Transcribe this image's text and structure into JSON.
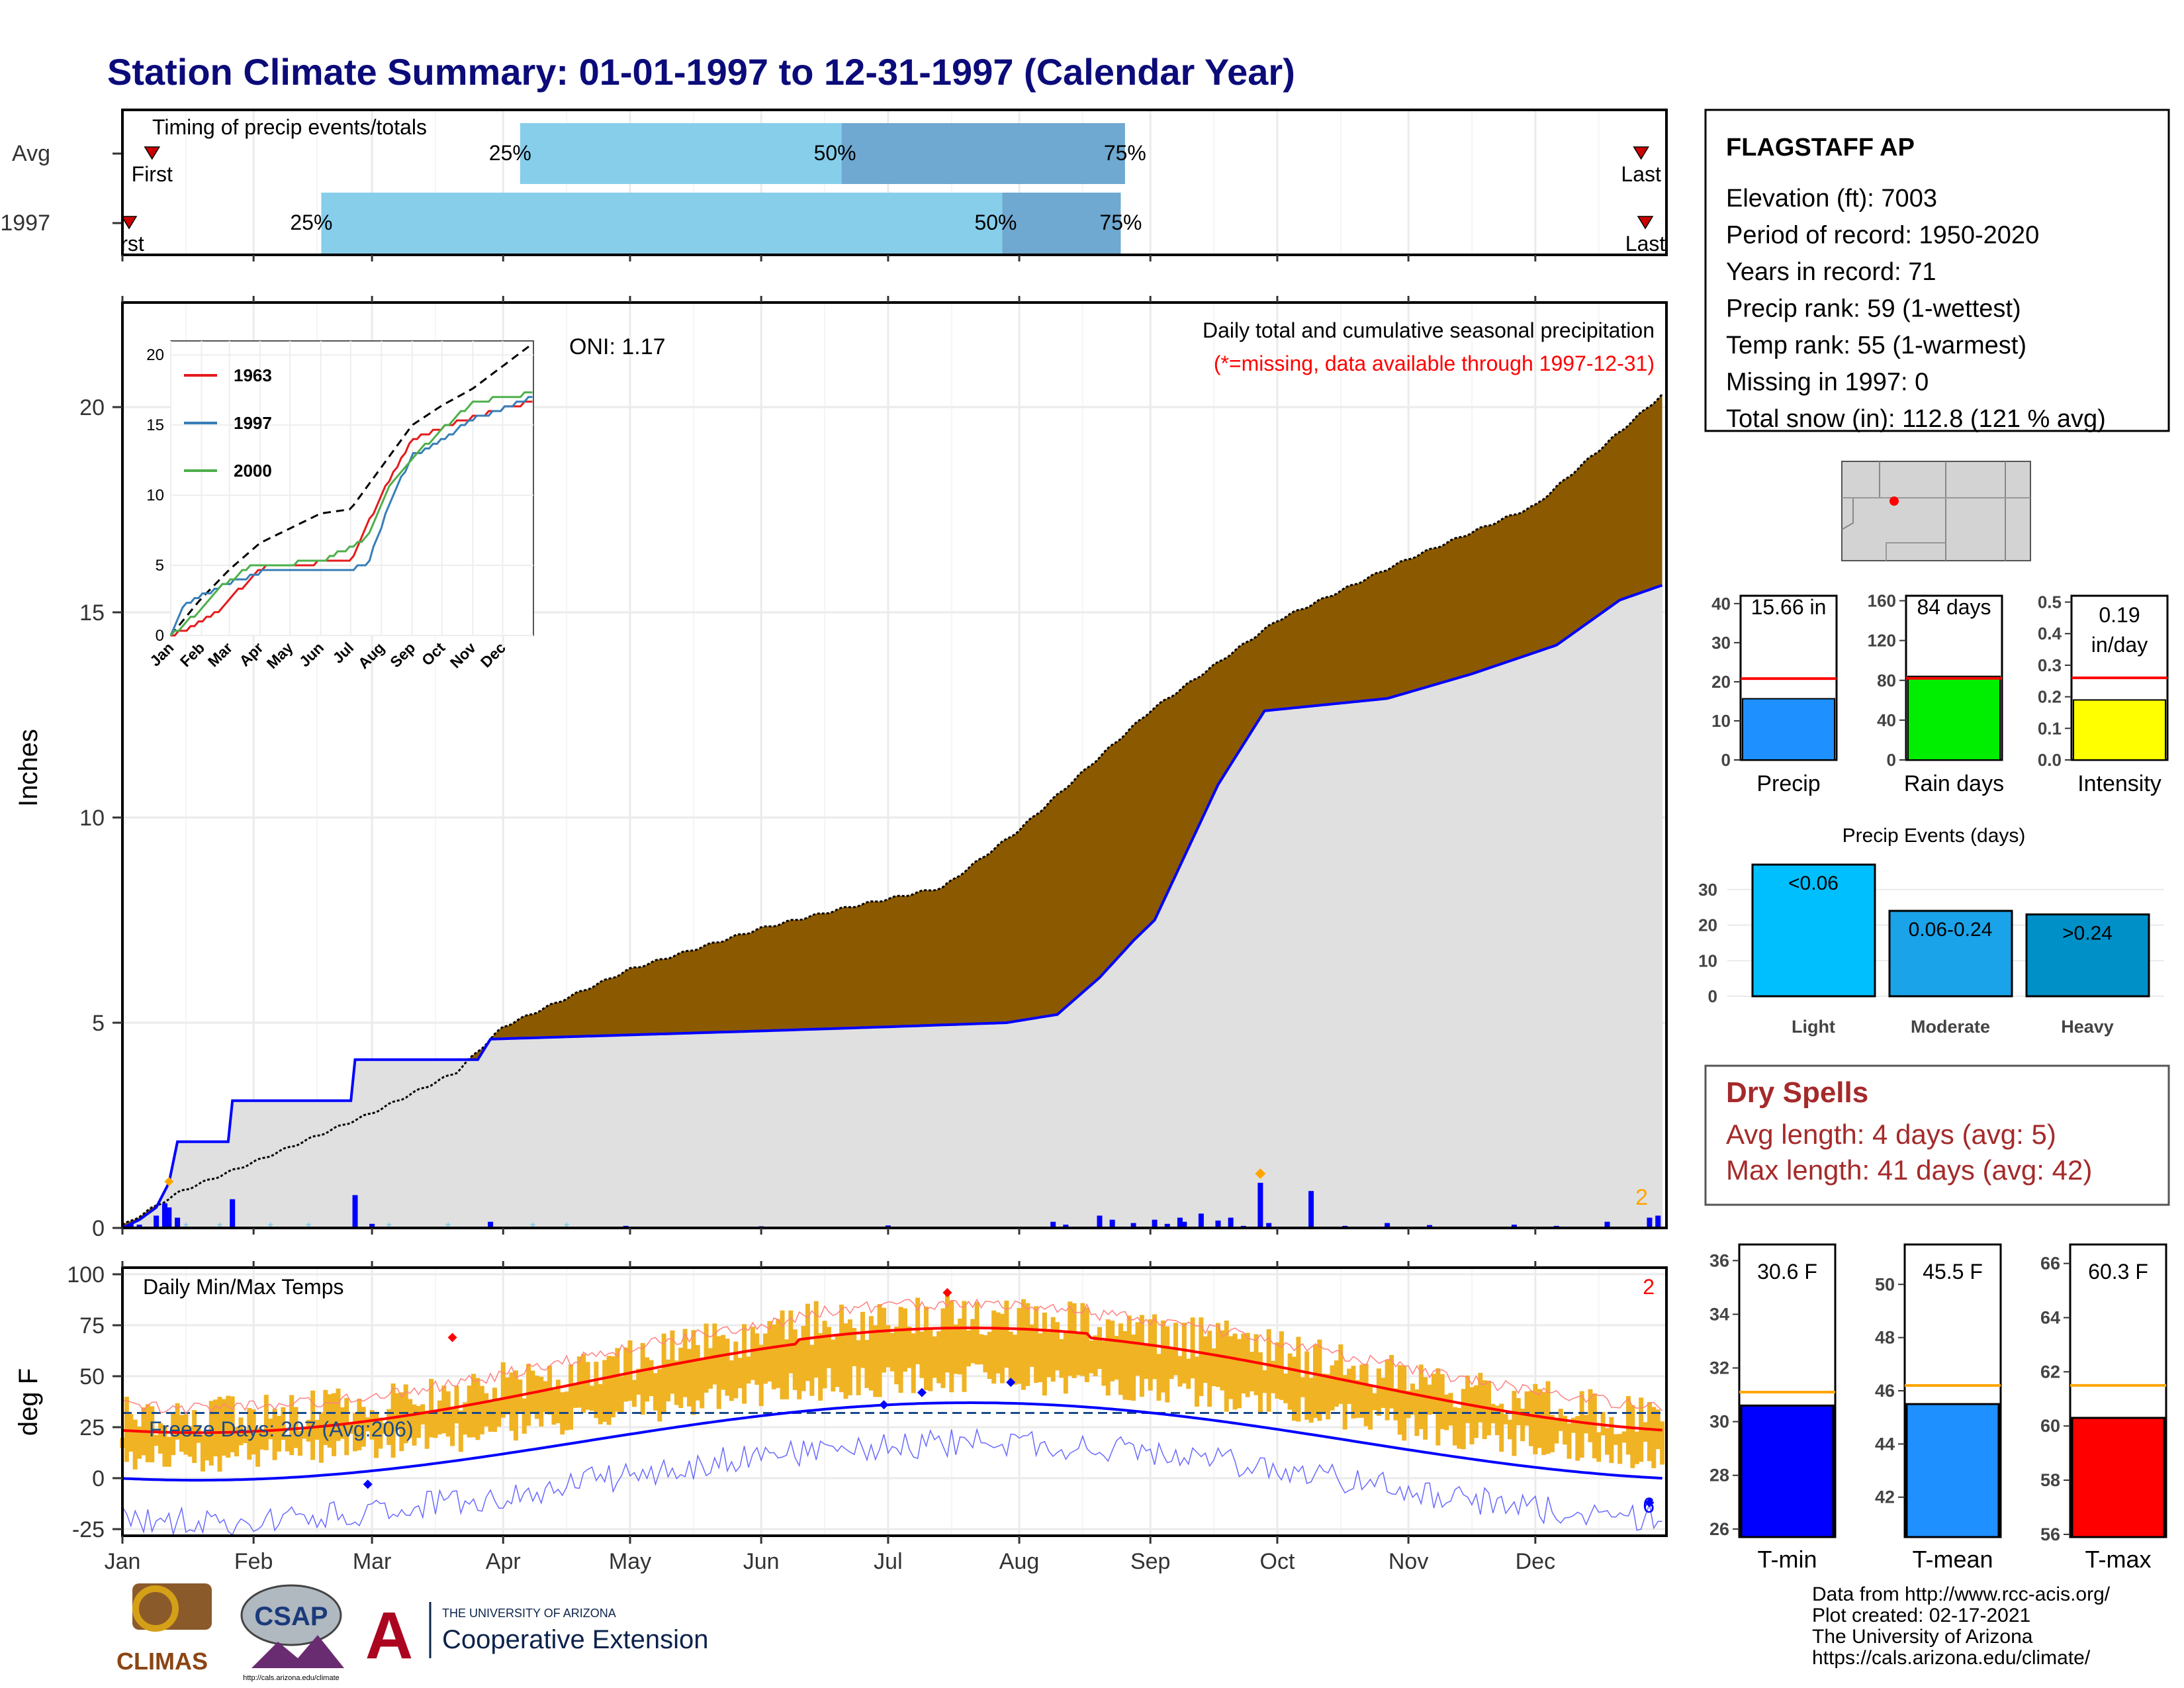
{
  "title": "Station Climate Summary: 01-01-1997 to 12-31-1997 (Calendar Year)",
  "months": [
    "Jan",
    "Feb",
    "Mar",
    "Apr",
    "May",
    "Jun",
    "Jul",
    "Aug",
    "Sep",
    "Oct",
    "Nov",
    "Dec"
  ],
  "timing": {
    "label": "Timing of precip events/totals",
    "rows": [
      {
        "name": "Avg",
        "first_doy": 8,
        "p25_doy": 95,
        "p50_doy": 171,
        "p75_doy": 238,
        "last_doy": 360,
        "labels": {
          "first": "First",
          "p25": "25%",
          "p50": "50%",
          "p75": "75%",
          "last": "Last"
        }
      },
      {
        "name": "1997",
        "first_doy": 1,
        "p25_doy": 48,
        "p50_doy": 209,
        "p75_doy": 237,
        "last_doy": 361,
        "labels": {
          "first": "rst",
          "p25": "25%",
          "p50": "50%",
          "p75": "75%",
          "last": "Last"
        }
      }
    ],
    "colors": {
      "light": "#87ceeb",
      "dark": "#6fa8d0",
      "marker": "#cc0000"
    }
  },
  "precip": {
    "ylabel": "Inches",
    "caption1": "Daily total and cumulative seasonal precipitation",
    "caption2": "(*=missing, data available through 1997-12-31)",
    "oni": "ONI: 1.17",
    "corner_count": "2",
    "colors": {
      "above": "#8b5a00",
      "below": "#008000",
      "fill": "#e0e0e0",
      "line": "#0000ff",
      "avg_line": "#000000"
    }
  },
  "inset": {
    "series": [
      {
        "name": "1963",
        "color": "#e41a1c"
      },
      {
        "name": "1997",
        "color": "#377eb8"
      },
      {
        "name": "2000",
        "color": "#4daf4a"
      }
    ],
    "yticks": [
      "0",
      "5",
      "10",
      "15",
      "20"
    ],
    "xticks": [
      "Jan",
      "Feb",
      "Mar",
      "Apr",
      "May",
      "Jun",
      "Jul",
      "Aug",
      "Sep",
      "Oct",
      "Nov",
      "Dec"
    ]
  },
  "temps": {
    "ylabel": "deg F",
    "label": "Daily Min/Max Temps",
    "freeze": "Freeze Days: 207 (Avg:206)",
    "corner_max": "2",
    "corner_min": "6",
    "yticks": [
      "100",
      "75",
      "50",
      "25",
      "0",
      "-25"
    ]
  },
  "station": {
    "name": "FLAGSTAFF AP",
    "lines": [
      "Elevation (ft): 7003",
      "Period of record: 1950-2020",
      "Years in record: 71",
      "Precip rank: 59 (1-wettest)",
      "Temp rank: 55 (1-warmest)",
      "Missing in 1997: 0",
      "Total snow (in): 112.8 (121 % avg)"
    ]
  },
  "mini_charts": [
    {
      "key": "precip",
      "label": "Precip",
      "value_label": "15.66 in",
      "value": 15.66,
      "avg": 20.8,
      "ymax": 42,
      "yticks": [
        "0",
        "10",
        "20",
        "30",
        "40"
      ],
      "tick_vals": [
        0,
        10,
        20,
        30,
        40
      ],
      "color": "#1e90ff",
      "avg_color": "#ff0000"
    },
    {
      "key": "raindays",
      "label": "Rain days",
      "value_label": "84 days",
      "value": 84,
      "avg": 82,
      "ymax": 165,
      "yticks": [
        "0",
        "40",
        "80",
        "120",
        "160"
      ],
      "tick_vals": [
        0,
        40,
        80,
        120,
        160
      ],
      "color": "#00ee00",
      "avg_color": "#ff0000"
    },
    {
      "key": "intensity",
      "label": "Intensity",
      "value_label": "0.19 in/day",
      "value": 0.19,
      "avg": 0.26,
      "ymax": 0.52,
      "yticks": [
        "0.0",
        "0.1",
        "0.2",
        "0.3",
        "0.4",
        "0.5"
      ],
      "tick_vals": [
        0,
        0.1,
        0.2,
        0.3,
        0.4,
        0.5
      ],
      "color": "#ffff00",
      "avg_color": "#ff0000"
    }
  ],
  "events": {
    "title": "Precip Events (days)",
    "categories": [
      "Light",
      "Moderate",
      "Heavy"
    ],
    "values": [
      37,
      24,
      23
    ],
    "bar_labels": [
      "<0.06",
      "0.06-0.24",
      ">0.24"
    ],
    "colors": [
      "#00bfff",
      "#1aa3e8",
      "#0090c8"
    ],
    "yticks": [
      "0",
      "10",
      "20",
      "30"
    ]
  },
  "dry_spells": {
    "title": "Dry Spells",
    "avg_line": "Avg length: 4 days (avg: 5)",
    "max_line": "Max length: 41 days (avg: 42)",
    "color": "#a52a2a"
  },
  "temp_bars": [
    {
      "label": "T-min",
      "value_label": "30.6 F",
      "value": 30.6,
      "avg": 31.1,
      "ymin": 25.7,
      "ymax": 36.6,
      "yticks": [
        "26",
        "28",
        "30",
        "32",
        "34",
        "36"
      ],
      "tick_vals": [
        26,
        28,
        30,
        32,
        34,
        36
      ],
      "color": "#0000ff"
    },
    {
      "label": "T-mean",
      "value_label": "45.5 F",
      "value": 45.5,
      "avg": 46.2,
      "ymin": 40.5,
      "ymax": 51.5,
      "yticks": [
        "42",
        "44",
        "46",
        "48",
        "50"
      ],
      "tick_vals": [
        42,
        44,
        46,
        48,
        50
      ],
      "color": "#1e90ff"
    },
    {
      "label": "T-max",
      "value_label": "60.3 F",
      "value": 60.3,
      "avg": 61.5,
      "ymin": 55.9,
      "ymax": 66.7,
      "yticks": [
        "56",
        "58",
        "60",
        "62",
        "64",
        "66"
      ],
      "tick_vals": [
        56,
        58,
        60,
        62,
        64,
        66
      ],
      "color": "#ff0000"
    }
  ],
  "footer": {
    "lines": [
      "Data from http://www.rcc-acis.org/",
      "Plot created: 02-17-2021",
      "The University of Arizona",
      "https://cals.arizona.edu/climate/"
    ],
    "logo_climas": "CLIMAS",
    "logo_csap": "CSAP",
    "logo_csap_url": "http://cals.arizona.edu/climate",
    "logo_ua_top": "THE UNIVERSITY OF ARIZONA",
    "logo_ua_bottom": "Cooperative Extension"
  }
}
